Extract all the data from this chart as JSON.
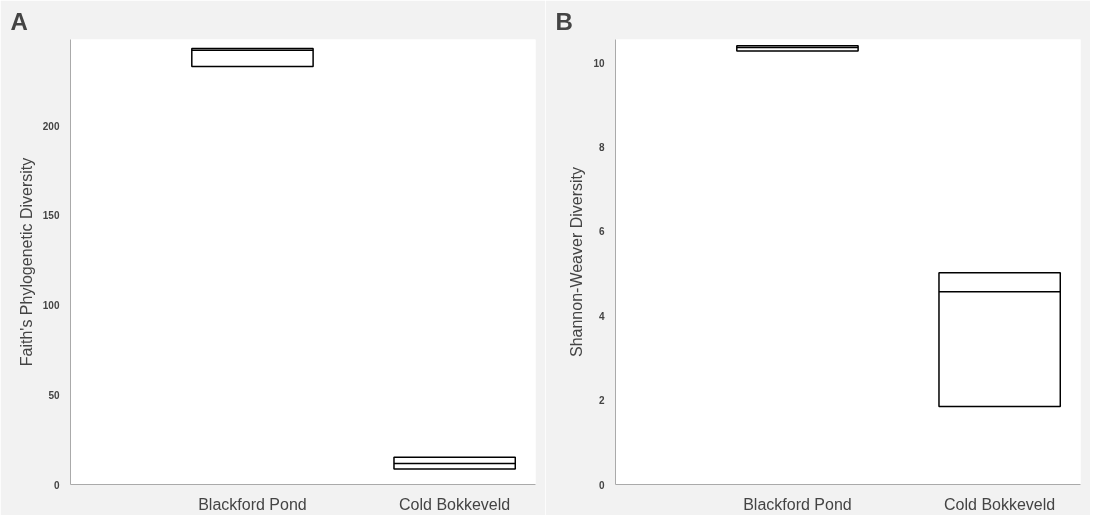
{
  "chart_data": [
    {
      "type": "box",
      "title": "A",
      "ylabel": "Faith's Phylogenetic Diversity",
      "categories": [
        "Blackford Pond",
        "Cold Bokkeveld"
      ],
      "ylim": [
        0,
        248
      ],
      "yticks": [
        0,
        50,
        100,
        150,
        200
      ],
      "grid": false,
      "boxes": [
        {
          "low": 233,
          "q1": 233,
          "median": 242,
          "q3": 243,
          "high": 243
        },
        {
          "low": 8.6,
          "q1": 8.6,
          "median": 11.7,
          "q3": 15.2,
          "high": 15.2
        }
      ]
    },
    {
      "type": "box",
      "title": "B",
      "ylabel": "Shannon-Weaver Diversity",
      "categories": [
        "Blackford Pond",
        "Cold Bokkeveld"
      ],
      "ylim": [
        0,
        10.55
      ],
      "yticks": [
        0,
        2,
        4,
        6,
        8,
        10
      ],
      "grid": false,
      "boxes": [
        {
          "low": 10.28,
          "q1": 10.28,
          "median": 10.36,
          "q3": 10.4,
          "high": 10.4
        },
        {
          "low": 1.85,
          "q1": 1.85,
          "median": 4.57,
          "q3": 5.02,
          "high": 5.02
        }
      ]
    }
  ]
}
